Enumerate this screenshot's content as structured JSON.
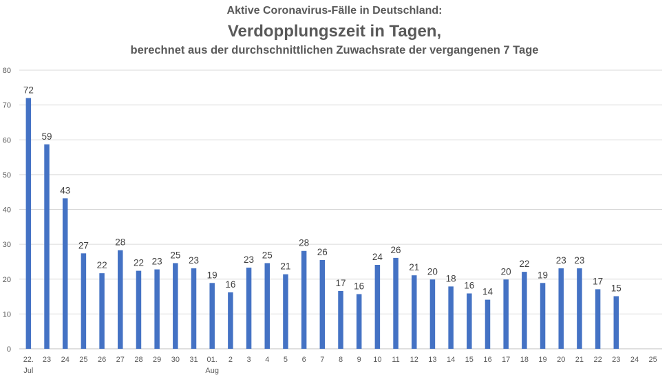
{
  "chart_data": {
    "type": "bar",
    "title_line1": "Aktive Coronavirus-Fälle in Deutschland:",
    "title_line2": "Verdopplungszeit in Tagen,",
    "title_line3": "berechnet aus der durchschnittlichen Zuwachsrate der vergangenen 7 Tage",
    "xlabel": "",
    "ylabel": "",
    "ylim": [
      0,
      80
    ],
    "yticks": [
      0,
      10,
      20,
      30,
      40,
      50,
      60,
      70,
      80
    ],
    "grid": true,
    "bar_color": "#4472C4",
    "categories": [
      {
        "label": "22.",
        "sublabel": "Jul",
        "value": 72
      },
      {
        "label": "23",
        "value": 58.7,
        "display": "59"
      },
      {
        "label": "24",
        "value": 43.2,
        "display": "43"
      },
      {
        "label": "25",
        "value": 27.4,
        "display": "27"
      },
      {
        "label": "26",
        "value": 21.7,
        "display": "22"
      },
      {
        "label": "27",
        "value": 28.3,
        "display": "28"
      },
      {
        "label": "28",
        "value": 22.4,
        "display": "22"
      },
      {
        "label": "29",
        "value": 22.8,
        "display": "23"
      },
      {
        "label": "30",
        "value": 24.6,
        "display": "25"
      },
      {
        "label": "31",
        "value": 23.1,
        "display": "23"
      },
      {
        "label": "01.",
        "sublabel": "Aug",
        "value": 18.9,
        "display": "19"
      },
      {
        "label": "2",
        "value": 16.2,
        "display": "16"
      },
      {
        "label": "3",
        "value": 23.3,
        "display": "23"
      },
      {
        "label": "4",
        "value": 24.6,
        "display": "25"
      },
      {
        "label": "5",
        "value": 21.4,
        "display": "21"
      },
      {
        "label": "6",
        "value": 28.1,
        "display": "28"
      },
      {
        "label": "7",
        "value": 25.5,
        "display": "26"
      },
      {
        "label": "8",
        "value": 16.6,
        "display": "17"
      },
      {
        "label": "9",
        "value": 15.7,
        "display": "16"
      },
      {
        "label": "10",
        "value": 24.1,
        "display": "24"
      },
      {
        "label": "11",
        "value": 26.1,
        "display": "26"
      },
      {
        "label": "12",
        "value": 21.1,
        "display": "21"
      },
      {
        "label": "13",
        "value": 19.9,
        "display": "20"
      },
      {
        "label": "14",
        "value": 17.9,
        "display": "18"
      },
      {
        "label": "15",
        "value": 15.9,
        "display": "16"
      },
      {
        "label": "16",
        "value": 14.1,
        "display": "14"
      },
      {
        "label": "17",
        "value": 19.9,
        "display": "20"
      },
      {
        "label": "18",
        "value": 22.1,
        "display": "22"
      },
      {
        "label": "19",
        "value": 18.9,
        "display": "19"
      },
      {
        "label": "20",
        "value": 23.1,
        "display": "23"
      },
      {
        "label": "21",
        "value": 23.1,
        "display": "23"
      },
      {
        "label": "22",
        "value": 17.1,
        "display": "17"
      },
      {
        "label": "23",
        "value": 15.1,
        "display": "15"
      },
      {
        "label": "24",
        "value": null
      },
      {
        "label": "25",
        "value": null
      }
    ]
  }
}
